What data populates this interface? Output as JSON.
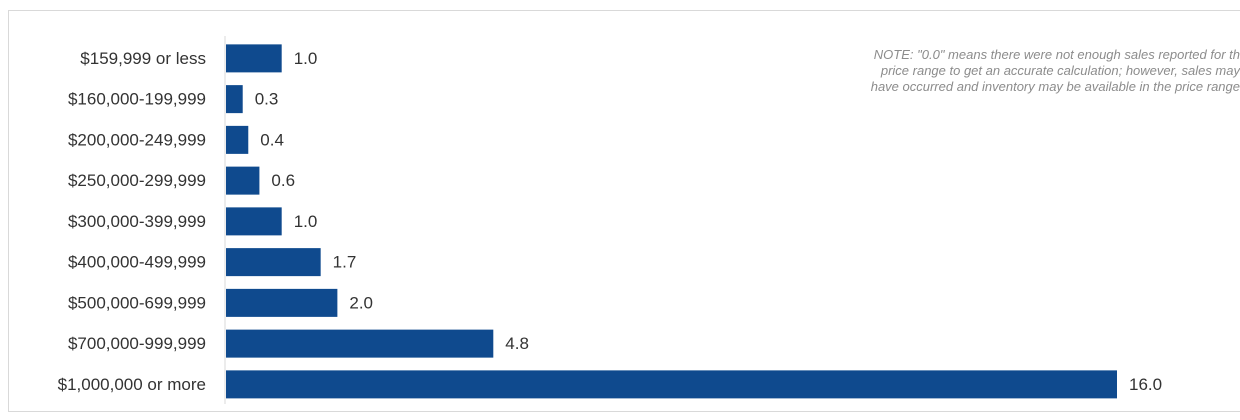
{
  "chart_data": {
    "type": "bar",
    "orientation": "horizontal",
    "categories": [
      "$159,999 or less",
      "$160,000-199,999",
      "$200,000-249,999",
      "$250,000-299,999",
      "$300,000-399,999",
      "$400,000-499,999",
      "$500,000-699,999",
      "$700,000-999,999",
      "$1,000,000 or more"
    ],
    "values": [
      1.0,
      0.3,
      0.4,
      0.6,
      1.0,
      1.7,
      2.0,
      4.8,
      16.0
    ],
    "value_labels": [
      "1.0",
      "0.3",
      "0.4",
      "0.6",
      "1.0",
      "1.7",
      "2.0",
      "4.8",
      "16.0"
    ],
    "xlim": [
      0,
      16.0
    ],
    "grid": false,
    "legend": "none",
    "bar_color": "#0f4a8e"
  },
  "note": {
    "lines": [
      "NOTE: \"0.0\" means there were not enough sales reported for th",
      "price range to get an accurate calculation;  however, sales may",
      "have occurred and inventory may be available in the price range"
    ]
  }
}
